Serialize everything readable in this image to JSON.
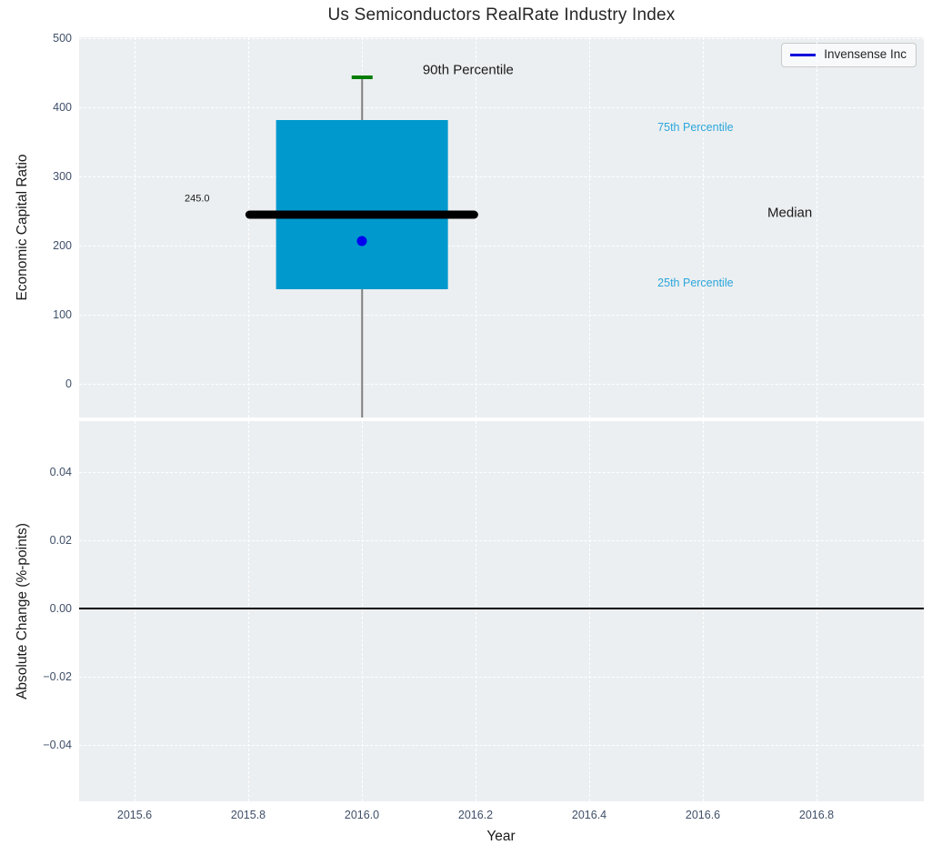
{
  "chart_data": {
    "type": "box",
    "title": "Us Semiconductors RealRate Industry Index",
    "xlabel": "Year",
    "xlim": [
      2015.5024,
      2016.9888
    ],
    "xticks": [
      2015.6,
      2015.8,
      2016.0,
      2016.2,
      2016.4,
      2016.6,
      2016.8
    ],
    "xtick_labels": [
      "2015.6",
      "2015.8",
      "2016.0",
      "2016.2",
      "2016.4",
      "2016.6",
      "2016.8"
    ],
    "legend": {
      "label": "Invensense Inc",
      "line_color": "#0000dd",
      "position": "upper right"
    },
    "top": {
      "ylabel": "Economic Capital Ratio",
      "ylim": [
        -48.7,
        501.3
      ],
      "yticks": [
        0,
        100,
        200,
        300,
        400,
        500
      ],
      "ytick_labels": [
        "0",
        "100",
        "200",
        "300",
        "400",
        "500"
      ],
      "grid": true,
      "box": {
        "x": 2016.0,
        "q1": 137,
        "median": 245.0,
        "q3": 381,
        "p90": 444,
        "whisker_low_clipped_at": -48.7,
        "box_half_width": 0.151,
        "median_half_width": 0.205,
        "cap_half_width": 0.018,
        "box_color": "#0099cd",
        "median_color": "#000000",
        "whisker_color": "#808080",
        "cap_color": "#007d00"
      },
      "company_point": {
        "label": "Invensense Inc",
        "x": 2016.0,
        "y": 207,
        "color": "#0000ee"
      },
      "annotations": [
        {
          "text": "90th Percentile",
          "x": 2016.187,
          "y": 454,
          "color": "#1a1a1a",
          "size": 15
        },
        {
          "text": "75th Percentile",
          "x": 2016.587,
          "y": 371,
          "color": "#2ba6dc",
          "size": 12.5
        },
        {
          "text": "Median",
          "x": 2016.753,
          "y": 247,
          "color": "#1a1a1a",
          "size": 15
        },
        {
          "text": "25th Percentile",
          "x": 2016.587,
          "y": 146,
          "color": "#2ba6dc",
          "size": 12.5
        },
        {
          "text": "245.0",
          "x": 2015.71,
          "y": 267,
          "color": "#1a1a1a",
          "size": 11
        }
      ]
    },
    "bottom": {
      "ylabel": "Absolute Change (%-points)",
      "ylim": [
        -0.0566,
        0.055
      ],
      "yticks": [
        0.04,
        0.02,
        0.0,
        -0.02,
        -0.04
      ],
      "ytick_labels": [
        "0.04",
        "0.02",
        "0.00",
        "−0.02",
        "−0.04"
      ],
      "grid": true,
      "zero_line": {
        "y": 0.0,
        "color": "#000000"
      }
    },
    "colors": {
      "axes_background": "#eceff1",
      "grid": "#ffffff",
      "tick_label": "#3f4f68"
    }
  }
}
